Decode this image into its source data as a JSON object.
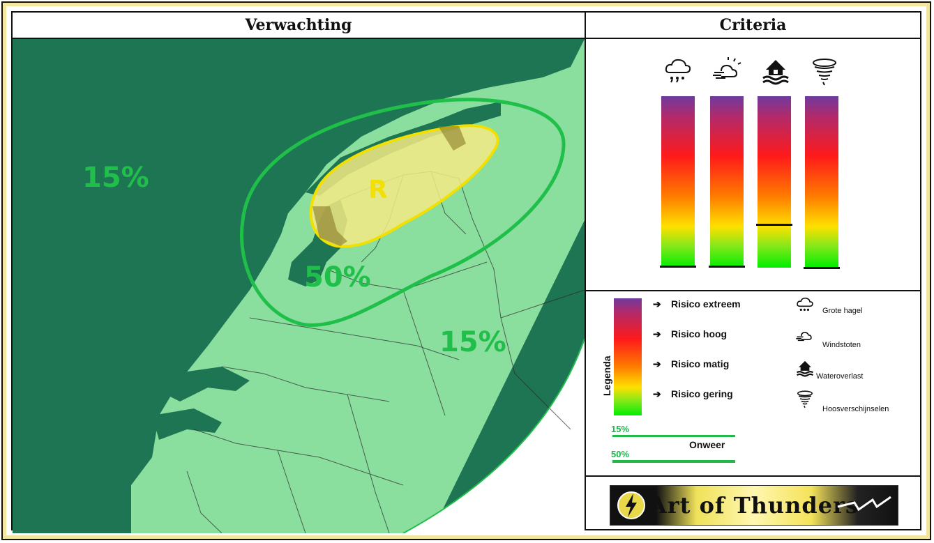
{
  "header": {
    "left_title": "Verwachting",
    "right_title": "Criteria"
  },
  "map": {
    "labels": {
      "sea_15": "15%",
      "risk_r": "R",
      "zone_50": "50%",
      "land_15": "15%"
    },
    "colors": {
      "sea": "#1e7553",
      "land": "#8ade9e",
      "outside": "#ffffff",
      "line_15": "#1fbf4a",
      "risk_fill": "#f4ea85",
      "risk_line": "#f2e000"
    }
  },
  "criteria": {
    "columns": [
      {
        "icon": "hail-icon",
        "level": 0.0
      },
      {
        "icon": "wind-gust-icon",
        "level": 0.0
      },
      {
        "icon": "flood-icon",
        "level": 0.25
      },
      {
        "icon": "tornado-icon",
        "level": 0.0
      }
    ]
  },
  "legend": {
    "title": "Legenda",
    "levels": [
      "Risico extreem",
      "Risico hoog",
      "Risico matig",
      "Risico gering"
    ],
    "hazards": [
      {
        "icon": "hail-icon",
        "label": "Grote hagel"
      },
      {
        "icon": "wind-gust-icon",
        "label": "Windstoten"
      },
      {
        "icon": "flood-icon",
        "label": "Wateroverlast"
      },
      {
        "icon": "tornado-icon",
        "label": "Hoosverschijnselen"
      }
    ],
    "lines": [
      {
        "label": "15%"
      },
      {
        "label": "50%"
      }
    ],
    "onweer": "Onweer"
  },
  "logo": {
    "text": "Art of Thunders"
  }
}
